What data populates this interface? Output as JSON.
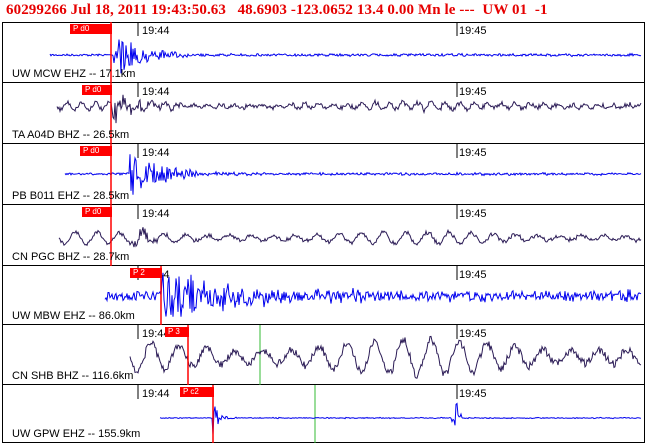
{
  "header": {
    "event_id": "60299266",
    "date": "Jul 18, 2011",
    "time": "19:43:50.63",
    "lat": "48.6903",
    "lon": "-123.0652",
    "depth": "13.4",
    "mag": "0.00",
    "mag_type": "Mn",
    "type": "le",
    "flags": "---",
    "net": "UW",
    "ver": "01",
    "extra": "-1"
  },
  "time_labels": [
    "19:44",
    "19:45"
  ],
  "colors": {
    "header": "#e60000",
    "blue": "#0000ee",
    "dark": "#2a1a55",
    "pick": "#ff0000",
    "green": "#33bb33"
  },
  "panels": [
    {
      "label": "UW MCW EHZ -- 17.1km",
      "pick": "P d0",
      "trace": "blue"
    },
    {
      "label": "TA A04D BHZ -- 26.5km",
      "pick": "P d0",
      "trace": "dark"
    },
    {
      "label": "PB B011 EHZ -- 28.5km",
      "pick": "P d0",
      "trace": "blue"
    },
    {
      "label": "CN PGC BHZ -- 28.7km",
      "pick": "P d0",
      "trace": "dark"
    },
    {
      "label": "UW MBW EHZ -- 86.0km",
      "pick": "P 2",
      "trace": "blue"
    },
    {
      "label": "CN SHB BHZ -- 116.6km",
      "pick": "P 3",
      "trace": "dark"
    },
    {
      "label": "UW GPW EHZ -- 155.9km",
      "pick": "P c2",
      "trace": "blue"
    }
  ]
}
